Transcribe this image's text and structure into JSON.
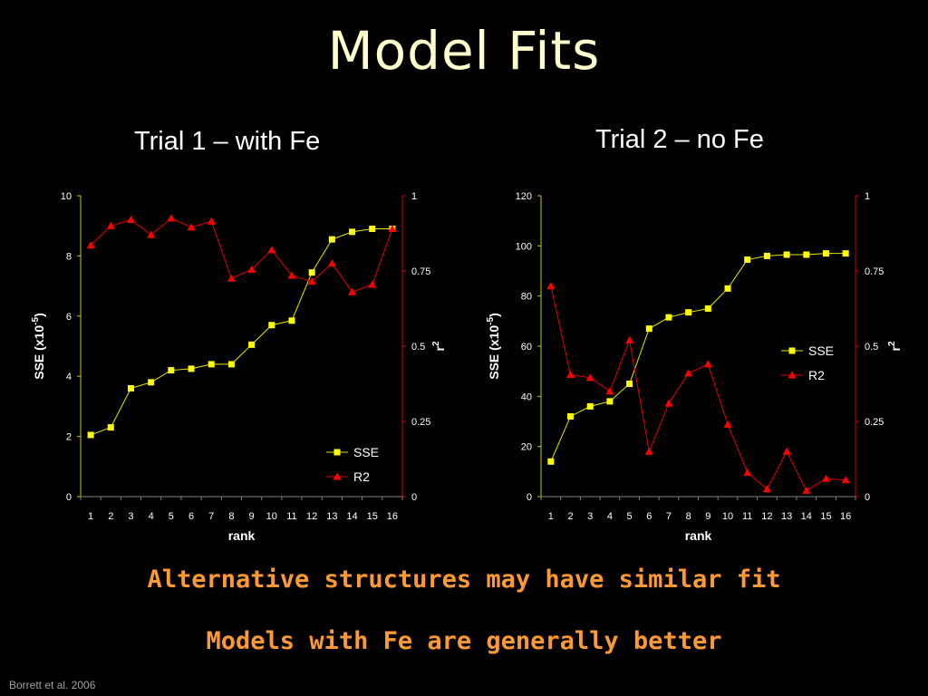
{
  "slide": {
    "title": "Model Fits",
    "title_color": "#ffffcc",
    "caption_1": "Alternative structures may have similar fit",
    "caption_2": "Models with Fe are generally better",
    "caption_color": "#ff9933",
    "citation": "Borrett et al. 2006"
  },
  "chart_data": [
    {
      "type": "line",
      "title": "Trial 1 – with Fe",
      "xlabel": "rank",
      "ylabel": "SSE (x10",
      "ylabel_sup": "-5",
      "ylabel_close": ")",
      "y2label": "r",
      "y2label_sup": "2",
      "categories": [
        1,
        2,
        3,
        4,
        5,
        6,
        7,
        8,
        9,
        10,
        11,
        12,
        13,
        14,
        15,
        16
      ],
      "ylim": [
        0,
        10
      ],
      "yticks": [
        0,
        2,
        4,
        6,
        8,
        10
      ],
      "y2lim": [
        0,
        1
      ],
      "y2ticks": [
        "0",
        "0.25",
        "0.5",
        "0.75",
        "1"
      ],
      "y2tick_values": [
        0,
        0.25,
        0.5,
        0.75,
        1
      ],
      "legend": "bottom-right",
      "series": [
        {
          "name": "SSE",
          "axis": "left",
          "marker": "square",
          "color": "#ffff00",
          "values": [
            2.05,
            2.3,
            3.6,
            3.8,
            4.2,
            4.25,
            4.4,
            4.4,
            5.05,
            5.7,
            5.85,
            7.45,
            8.55,
            8.8,
            8.9,
            8.9
          ]
        },
        {
          "name": "R2",
          "axis": "right",
          "marker": "triangle",
          "color": "#ff0000",
          "values": [
            0.835,
            0.9,
            0.92,
            0.87,
            0.925,
            0.895,
            0.915,
            0.725,
            0.755,
            0.82,
            0.735,
            0.715,
            0.775,
            0.68,
            0.705,
            0.89
          ]
        }
      ]
    },
    {
      "type": "line",
      "title": "Trial 2 – no Fe",
      "xlabel": "rank",
      "ylabel": "SSE (x10",
      "ylabel_sup": "-5",
      "ylabel_close": ")",
      "y2label": "r",
      "y2label_sup": "2",
      "categories": [
        1,
        2,
        3,
        4,
        5,
        6,
        7,
        8,
        9,
        10,
        11,
        12,
        13,
        14,
        15,
        16
      ],
      "ylim": [
        0,
        120
      ],
      "yticks": [
        0,
        20,
        40,
        60,
        80,
        100,
        120
      ],
      "y2lim": [
        0,
        1
      ],
      "y2ticks": [
        "0",
        "0.25",
        "0.5",
        "0.75",
        "1"
      ],
      "y2tick_values": [
        0,
        0.25,
        0.5,
        0.75,
        1
      ],
      "legend": "right",
      "series": [
        {
          "name": "SSE",
          "axis": "left",
          "marker": "square",
          "color": "#ffff00",
          "values": [
            14,
            32,
            36,
            38,
            45,
            67,
            71.5,
            73.5,
            75,
            83,
            94.5,
            96,
            96.5,
            96.5,
            97,
            97
          ]
        },
        {
          "name": "R2",
          "axis": "right",
          "marker": "triangle",
          "color": "#ff0000",
          "values": [
            0.7,
            0.405,
            0.395,
            0.35,
            0.52,
            0.15,
            0.31,
            0.41,
            0.44,
            0.24,
            0.08,
            0.025,
            0.15,
            0.02,
            0.06,
            0.055
          ]
        }
      ]
    }
  ]
}
